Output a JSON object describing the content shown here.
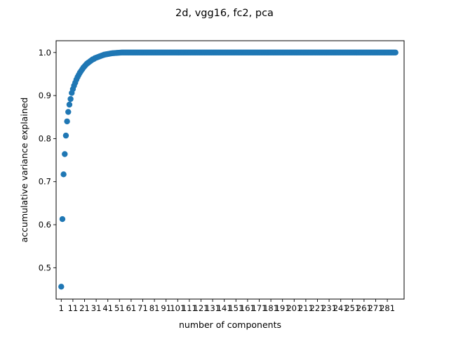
{
  "chart_data": {
    "type": "scatter",
    "title": "2d, vgg16, fc2, pca",
    "xlabel": "number of components",
    "ylabel": "accumulative variance explained",
    "xlim": [
      -3.4,
      295.4
    ],
    "ylim": [
      0.4272,
      1.0274
    ],
    "grid": false,
    "legend": "none",
    "x_ticks": [
      1,
      11,
      21,
      31,
      41,
      51,
      61,
      71,
      81,
      91,
      101,
      111,
      121,
      131,
      141,
      151,
      161,
      171,
      181,
      191,
      201,
      211,
      221,
      231,
      241,
      251,
      261,
      271,
      281
    ],
    "x_tick_labels": [
      "1",
      "11",
      "21",
      "31",
      "41",
      "51",
      "61",
      "71",
      "81",
      "91",
      "101",
      "111",
      "121",
      "131",
      "141",
      "151",
      "161",
      "171",
      "181",
      "191",
      "201",
      "211",
      "221",
      "231",
      "241",
      "251",
      "261",
      "271",
      "281"
    ],
    "y_ticks": [
      0.5,
      0.6,
      0.7,
      0.8,
      0.9,
      1.0
    ],
    "y_tick_labels": [
      "0.5",
      "0.6",
      "0.7",
      "0.8",
      "0.9",
      "1.0"
    ],
    "marker_color": "#1f77b4",
    "series": [
      {
        "n_points": 288,
        "x_start": 1,
        "x_step": 1,
        "y_head": [
          0.456,
          0.613,
          0.717,
          0.764,
          0.807,
          0.84,
          0.862,
          0.879,
          0.892,
          0.906,
          0.915,
          0.923,
          0.93,
          0.937,
          0.943,
          0.948,
          0.953,
          0.957,
          0.961,
          0.965,
          0.968,
          0.971,
          0.974,
          0.976,
          0.978,
          0.98,
          0.982,
          0.984,
          0.985,
          0.987,
          0.988,
          0.989,
          0.99,
          0.991,
          0.992,
          0.993,
          0.994,
          0.995,
          0.9955,
          0.996,
          0.9965,
          0.997,
          0.9975,
          0.998,
          0.9983,
          0.9986,
          0.9988,
          0.999,
          0.9992,
          0.9994,
          0.9996,
          0.9998
        ],
        "y_tail": 1.0
      }
    ]
  }
}
